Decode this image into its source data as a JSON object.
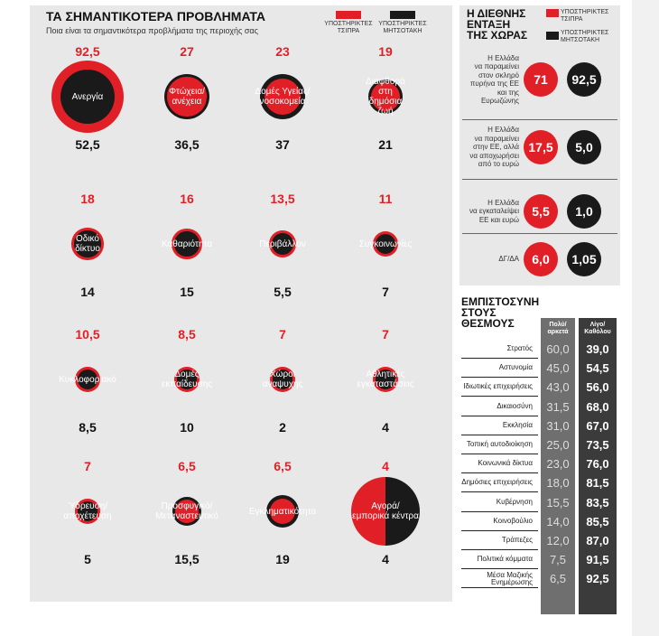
{
  "colors": {
    "red": "#e11f26",
    "black": "#1a1a1a",
    "grey_col": "#6f6f6f",
    "dark_col": "#3b3b3b"
  },
  "header": {
    "title": "ΤΑ ΣΗΜΑΝΤΙΚΟΤΕΡΑ ΠΡΟΒΛΗΜΑΤΑ",
    "subtitle": "Ποια είναι τα σημαντικότερα προβλήματα της περιοχής σας"
  },
  "legend": {
    "red_label": "ΥΠΟΣΤΗΡΙΚΤΕΣ\nΤΣΙΠΡΑ",
    "black_label": "ΥΠΟΣΤΗΡΙΚΤΕΣ\nΜΗΤΣΟΤΑΚΗ"
  },
  "europe": {
    "title": "Η ΔΙΕΘΝΗΣ\nΕΝΤΑΞΗ\nΤΗΣ ΧΩΡΑΣ",
    "legend_red": "ΥΠΟΣΤΗΡΙΚΤΕΣ\nΤΣΙΠΡΑ",
    "legend_black": "ΥΠΟΣΤΗΡΙΚΤΕΣ\nΜΗΤΣΟΤΑΚΗ",
    "rows": [
      {
        "text": "Η Ελλάδα\nνα παραμείνει\nστον σκληρό\nπυρήνα της ΕΕ\nκαι της\nΕυρωζώνης",
        "red": "71",
        "black": "92,5"
      },
      {
        "text": "Η Ελλάδα\nνα παραμείνει\nστην ΕΕ, αλλά\nνα αποχωρήσει\nαπό το ευρώ",
        "red": "17,5",
        "black": "5,0"
      },
      {
        "text": "Η Ελλάδα\nνα εγκαταλείψει\nΕΕ και ευρώ",
        "red": "5,5",
        "black": "1,0"
      },
      {
        "text": "ΔΓ/ΔΑ",
        "red": "6,0",
        "black": "1,05"
      }
    ]
  },
  "chart_data": [
    {
      "type": "bubble-comparison",
      "title": "ΤΑ ΣΗΜΑΝΤΙΚΟΤΕΡΑ ΠΡΟΒΛΗΜΑΤΑ",
      "subtitle": "Ποια είναι τα σημαντικότερα προβλήματα της περιοχής σας",
      "series": [
        {
          "name": "ΥΠΟΣΤΗΡΙΚΤΕΣ ΤΣΙΠΡΑ"
        },
        {
          "name": "ΥΠΟΣΤΗΡΙΚΤΕΣ ΜΗΤΣΟΤΑΚΗ"
        }
      ],
      "items": [
        {
          "label": "Ανεργία",
          "tsipras": "92,5",
          "mitsotakis": "52,5",
          "t": 92.5,
          "m": 52.5
        },
        {
          "label": "Φτώχεια/\nανέχεια",
          "tsipras": "27",
          "mitsotakis": "36,5",
          "t": 27,
          "m": 36.5
        },
        {
          "label": "Δομές Υγείας/\nνοσοκομεία",
          "tsipras": "23",
          "mitsotakis": "37",
          "t": 23,
          "m": 37
        },
        {
          "label": "Διαφθορά\nστη\nδημόσια\nζωή",
          "tsipras": "19",
          "mitsotakis": "21",
          "t": 19,
          "m": 21
        },
        {
          "label": "Οδικό\nδίκτυο",
          "tsipras": "18",
          "mitsotakis": "14",
          "t": 18,
          "m": 14
        },
        {
          "label": "Καθαριότητα",
          "tsipras": "16",
          "mitsotakis": "15",
          "t": 16,
          "m": 15
        },
        {
          "label": "Περιβάλλον",
          "tsipras": "13,5",
          "mitsotakis": "5,5",
          "t": 13.5,
          "m": 5.5
        },
        {
          "label": "Συγκοινωνίες",
          "tsipras": "11",
          "mitsotakis": "7",
          "t": 11,
          "m": 7
        },
        {
          "label": "Κυκλοφοριακό",
          "tsipras": "10,5",
          "mitsotakis": "8,5",
          "t": 10.5,
          "m": 8.5
        },
        {
          "label": "Δομές\nεκπαίδευσης",
          "tsipras": "8,5",
          "mitsotakis": "10",
          "t": 8.5,
          "m": 10
        },
        {
          "label": "Χώροι\nαναψυχής",
          "tsipras": "7",
          "mitsotakis": "2",
          "t": 7,
          "m": 2
        },
        {
          "label": "Αθλητικές\nεγκαταστάσεις",
          "tsipras": "7",
          "mitsotakis": "4",
          "t": 7,
          "m": 4
        },
        {
          "label": "Ύδρευση/\nαποχέτευση",
          "tsipras": "7",
          "mitsotakis": "5",
          "t": 7,
          "m": 5
        },
        {
          "label": "Προσφυγικό/\nΜεταναστευτικό",
          "tsipras": "6,5",
          "mitsotakis": "15,5",
          "t": 6.5,
          "m": 15.5
        },
        {
          "label": "Εγκληματικότητα",
          "tsipras": "6,5",
          "mitsotakis": "19",
          "t": 6.5,
          "m": 19
        },
        {
          "label": "Αγορά/\nεμπορικά κέντρα",
          "tsipras": "4",
          "mitsotakis": "4",
          "t": 4,
          "m": 4,
          "split": true
        }
      ]
    },
    {
      "type": "table",
      "title": "ΕΜΠΙΣΤΟΣΥΝΗ\nΣΤΟΥΣ\nΘΕΣΜΟΥΣ",
      "columns": [
        "Πολύ/\nαρκετά",
        "Λίγο/\nΚαθόλου"
      ],
      "rows": [
        {
          "label": "Στρατός",
          "a": "60,0",
          "b": "39,0"
        },
        {
          "label": "Αστυνομία",
          "a": "45,0",
          "b": "54,5"
        },
        {
          "label": "Ιδιωτικές επιχειρήσεις",
          "a": "43,0",
          "b": "56,0"
        },
        {
          "label": "Δικαιοσύνη",
          "a": "31,5",
          "b": "68,0"
        },
        {
          "label": "Εκκλησία",
          "a": "31,0",
          "b": "67,0"
        },
        {
          "label": "Τοπική αυτοδιοίκηση",
          "a": "25,0",
          "b": "73,5"
        },
        {
          "label": "Κοινωνικά δίκτυα",
          "a": "23,0",
          "b": "76,0"
        },
        {
          "label": "Δημόσιες επιχειρήσεις",
          "a": "18,0",
          "b": "81,5"
        },
        {
          "label": "Κυβέρνηση",
          "a": "15,5",
          "b": "83,5"
        },
        {
          "label": "Κοινοβούλιο",
          "a": "14,0",
          "b": "85,5"
        },
        {
          "label": "Τράπεζες",
          "a": "12,0",
          "b": "87,0"
        },
        {
          "label": "Πολιτικά κόμματα",
          "a": "7,5",
          "b": "91,5"
        },
        {
          "label": "Μέσα Μαζικής\nΕνημέρωσης",
          "a": "6,5",
          "b": "92,5"
        }
      ]
    }
  ]
}
